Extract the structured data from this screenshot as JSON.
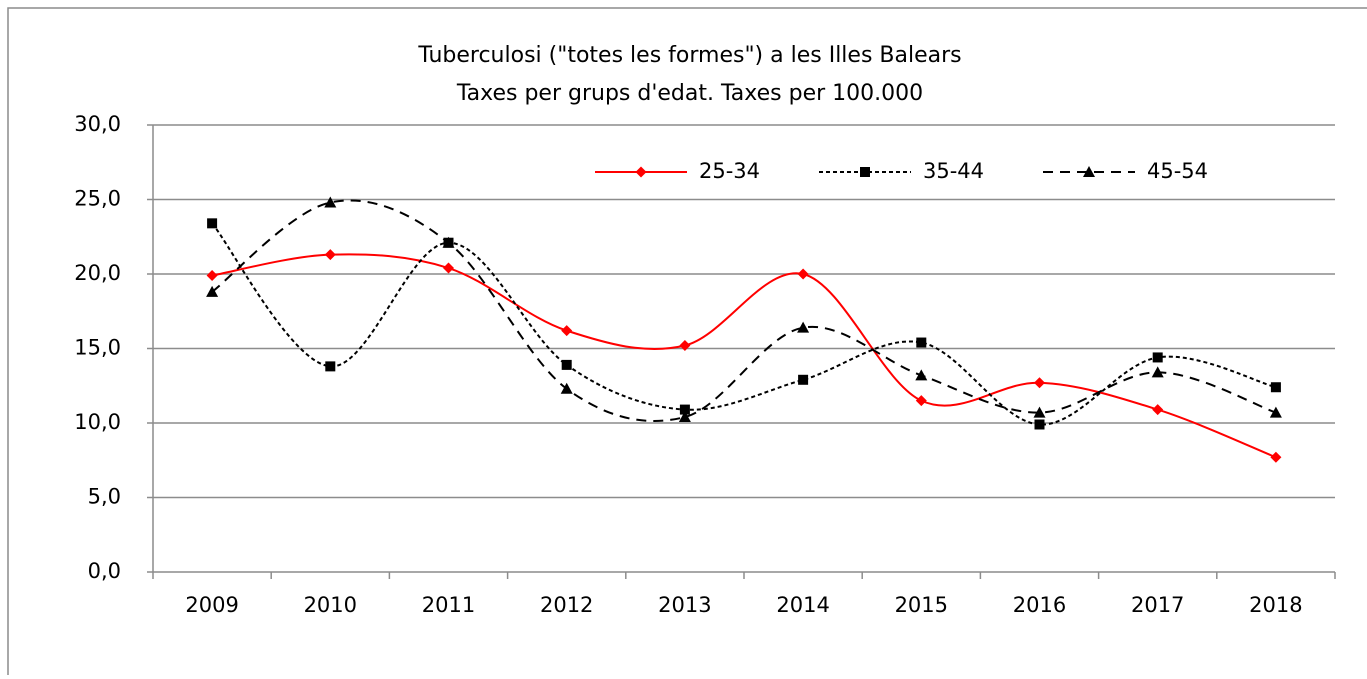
{
  "chart_data": {
    "type": "line",
    "title": "Tuberculosi (\"totes les formes\") a les Illes Balears",
    "subtitle": "Taxes per grups d'edat. Taxes per 100.000",
    "categories": [
      "2009",
      "2010",
      "2011",
      "2012",
      "2013",
      "2014",
      "2015",
      "2016",
      "2017",
      "2018"
    ],
    "series": [
      {
        "name": "25-34",
        "color": "#ff0000",
        "line_style": "solid",
        "marker": "diamond",
        "values": [
          19.9,
          21.3,
          20.4,
          16.2,
          15.2,
          20.0,
          11.5,
          12.7,
          10.9,
          7.7
        ]
      },
      {
        "name": "35-44",
        "color": "#000000",
        "line_style": "dotted",
        "marker": "square",
        "values": [
          23.4,
          13.8,
          22.1,
          13.9,
          10.9,
          12.9,
          15.4,
          9.9,
          14.4,
          12.4
        ]
      },
      {
        "name": "45-54",
        "color": "#000000",
        "line_style": "dashed",
        "marker": "triangle",
        "values": [
          18.8,
          24.8,
          22.1,
          12.3,
          10.4,
          16.4,
          13.2,
          10.7,
          13.4,
          10.7
        ]
      }
    ],
    "ylim": [
      0,
      30
    ],
    "yticks": [
      {
        "value": 0,
        "label": "0,0"
      },
      {
        "value": 5,
        "label": "5,0"
      },
      {
        "value": 10,
        "label": "10,0"
      },
      {
        "value": 15,
        "label": "15,0"
      },
      {
        "value": 20,
        "label": "20,0"
      },
      {
        "value": 25,
        "label": "25,0"
      },
      {
        "value": 30,
        "label": "30,0"
      }
    ],
    "grid": true,
    "smooth": true,
    "legend": "top"
  }
}
